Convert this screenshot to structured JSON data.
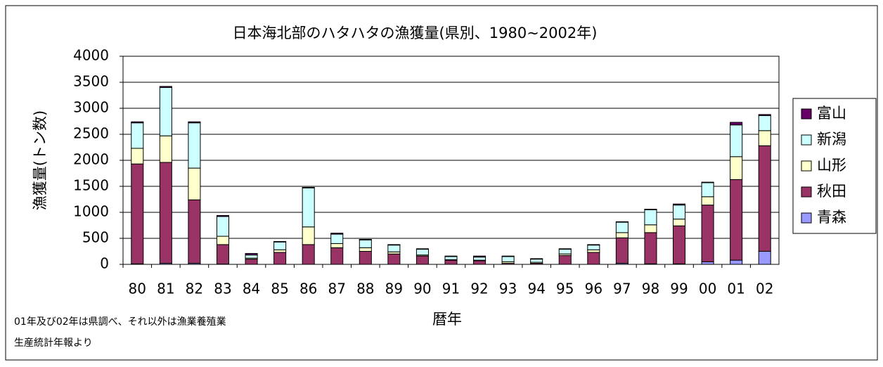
{
  "chart_data": {
    "type": "stacked_bar",
    "title": "日本海北部のハタハタの漁獲量(県別、1980~2002年)",
    "y_label": "漁獲量(トン数)",
    "x_label": "暦年",
    "notes": [
      "01年及び02年は県調べ、それ以外は漁業養殖業",
      "生産統計年報より"
    ],
    "categories": [
      "80",
      "81",
      "82",
      "83",
      "84",
      "85",
      "86",
      "87",
      "88",
      "89",
      "90",
      "91",
      "92",
      "93",
      "94",
      "95",
      "96",
      "97",
      "98",
      "99",
      "00",
      "01",
      "02"
    ],
    "series": [
      {
        "name": "青森",
        "color": "#9999ff",
        "values": [
          10,
          20,
          20,
          5,
          0,
          0,
          0,
          0,
          0,
          0,
          0,
          0,
          0,
          0,
          0,
          0,
          0,
          20,
          10,
          10,
          50,
          80,
          250
        ]
      },
      {
        "name": "秋田",
        "color": "#993366",
        "values": [
          1920,
          1940,
          1220,
          375,
          100,
          230,
          380,
          320,
          250,
          200,
          160,
          80,
          70,
          20,
          20,
          170,
          230,
          490,
          600,
          730,
          1090,
          1550,
          2030
        ]
      },
      {
        "name": "山形",
        "color": "#ffffcc",
        "values": [
          300,
          510,
          610,
          160,
          20,
          50,
          340,
          80,
          70,
          40,
          20,
          10,
          10,
          30,
          20,
          30,
          50,
          100,
          150,
          130,
          160,
          440,
          290
        ]
      },
      {
        "name": "新潟",
        "color": "#ccffff",
        "values": [
          490,
          930,
          870,
          380,
          60,
          150,
          750,
          180,
          150,
          130,
          110,
          60,
          60,
          100,
          60,
          90,
          90,
          200,
          290,
          270,
          270,
          610,
          290
        ]
      },
      {
        "name": "富山",
        "color": "#660066",
        "values": [
          20,
          20,
          20,
          20,
          30,
          10,
          10,
          20,
          10,
          10,
          10,
          10,
          20,
          10,
          10,
          10,
          10,
          10,
          10,
          20,
          10,
          50,
          20
        ]
      }
    ],
    "ylim": [
      0,
      4000
    ],
    "yticks": [
      0,
      500,
      1000,
      1500,
      2000,
      2500,
      3000,
      3500,
      4000
    ],
    "grid": true,
    "legend": "right"
  }
}
